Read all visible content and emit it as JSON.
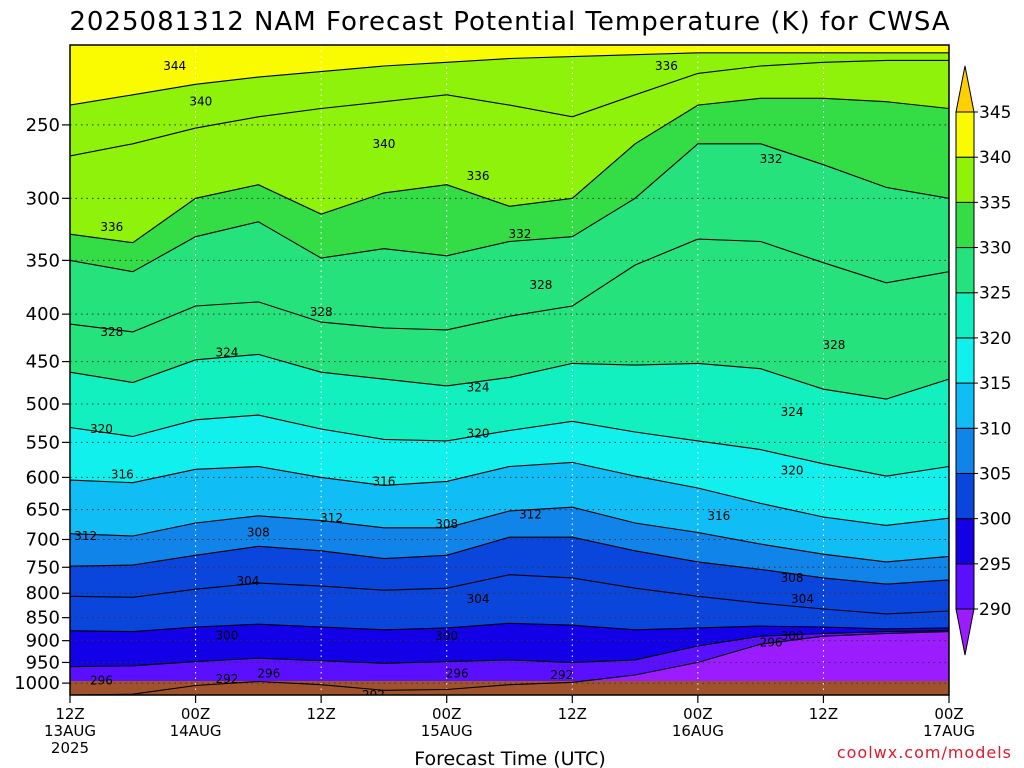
{
  "chart_data": {
    "type": "heatmap",
    "title": "2025081312 NAM Forecast Potential Temperature (K) for CWSA",
    "xlabel": "Forecast Time (UTC)",
    "ylabel": "",
    "credit": "coolwx.com/models",
    "x_ticks": [
      {
        "label": "12Z",
        "label2": "13AUG",
        "label3": "2025",
        "hour": 0
      },
      {
        "label": "00Z",
        "label2": "14AUG",
        "label3": "",
        "hour": 12
      },
      {
        "label": "12Z",
        "label2": "",
        "label3": "",
        "hour": 24
      },
      {
        "label": "00Z",
        "label2": "15AUG",
        "label3": "",
        "hour": 36
      },
      {
        "label": "12Z",
        "label2": "",
        "label3": "",
        "hour": 48
      },
      {
        "label": "00Z",
        "label2": "16AUG",
        "label3": "",
        "hour": 60
      },
      {
        "label": "12Z",
        "label2": "",
        "label3": "",
        "hour": 72
      },
      {
        "label": "00Z",
        "label2": "17AUG",
        "label3": "",
        "hour": 84
      }
    ],
    "xlim": [
      0,
      84
    ],
    "y_ticks": [
      250,
      300,
      350,
      400,
      450,
      500,
      550,
      600,
      650,
      700,
      750,
      800,
      850,
      900,
      950,
      1000
    ],
    "ylim": [
      1030,
      205
    ],
    "y_scale": "log",
    "colorbar": {
      "levels": [
        290,
        295,
        300,
        305,
        310,
        315,
        320,
        325,
        330,
        335,
        340,
        345
      ],
      "colors": [
        "#9a1cff",
        "#5a10ff",
        "#1400e6",
        "#0a46dc",
        "#1084e8",
        "#10bdf4",
        "#12f0ee",
        "#12f0c0",
        "#26e27c",
        "#34dc46",
        "#8ef20a",
        "#fafa00",
        "#ffd000"
      ]
    },
    "series": [
      {
        "theta": 344,
        "p": [
          238,
          232,
          226,
          222,
          219,
          216,
          214,
          212,
          211,
          210,
          209,
          209,
          209,
          209,
          209
        ]
      },
      {
        "theta": 340,
        "p": [
          270,
          262,
          252,
          245,
          240,
          236,
          232,
          238,
          245,
          232,
          220,
          216,
          214,
          213,
          213
        ]
      },
      {
        "theta": 336,
        "p": [
          328,
          335,
          300,
          290,
          312,
          296,
          290,
          306,
          300,
          262,
          238,
          234,
          234,
          236,
          240
        ]
      },
      {
        "theta": 332,
        "p": [
          350,
          360,
          330,
          318,
          348,
          340,
          346,
          334,
          330,
          300,
          262,
          262,
          276,
          292,
          300
        ]
      },
      {
        "theta": 328,
        "p": [
          410,
          418,
          392,
          388,
          408,
          414,
          416,
          402,
          392,
          354,
          332,
          334,
          352,
          370,
          360
        ]
      },
      {
        "theta": 324,
        "p": [
          462,
          474,
          448,
          442,
          462,
          470,
          478,
          468,
          452,
          454,
          452,
          458,
          482,
          494,
          470
        ]
      },
      {
        "theta": 320,
        "p": [
          530,
          542,
          520,
          514,
          532,
          546,
          548,
          534,
          522,
          536,
          548,
          560,
          580,
          598,
          584
        ]
      },
      {
        "theta": 316,
        "p": [
          604,
          608,
          588,
          584,
          600,
          612,
          606,
          584,
          578,
          598,
          616,
          640,
          662,
          676,
          664
        ]
      },
      {
        "theta": 312,
        "p": [
          690,
          694,
          672,
          660,
          668,
          680,
          680,
          652,
          646,
          672,
          688,
          708,
          726,
          740,
          730
        ]
      },
      {
        "theta": 308,
        "p": [
          748,
          746,
          728,
          712,
          720,
          734,
          728,
          696,
          696,
          720,
          740,
          754,
          770,
          782,
          774
        ]
      },
      {
        "theta": 304,
        "p": [
          806,
          808,
          792,
          780,
          786,
          794,
          790,
          764,
          770,
          790,
          806,
          820,
          832,
          842,
          836
        ]
      },
      {
        "theta": 300,
        "p": [
          878,
          880,
          870,
          864,
          870,
          876,
          872,
          862,
          866,
          876,
          872,
          868,
          870,
          874,
          872
        ]
      },
      {
        "theta": 296,
        "p": [
          960,
          958,
          948,
          940,
          946,
          952,
          948,
          944,
          950,
          944,
          912,
          890,
          884,
          880,
          878
        ]
      },
      {
        "theta": 292,
        "p": [
          1030,
          1028,
          1006,
          996,
          1004,
          1018,
          1016,
          1004,
          998,
          980,
          950,
          908,
          890,
          884,
          880
        ]
      }
    ],
    "contour_labels": [
      {
        "text": "344",
        "hour": 10,
        "p": 216
      },
      {
        "text": "340",
        "hour": 12.5,
        "p": 236
      },
      {
        "text": "340",
        "hour": 30,
        "p": 262
      },
      {
        "text": "336",
        "hour": 4,
        "p": 322
      },
      {
        "text": "336",
        "hour": 39,
        "p": 284
      },
      {
        "text": "336",
        "hour": 57,
        "p": 216
      },
      {
        "text": "332",
        "hour": 43,
        "p": 328
      },
      {
        "text": "332",
        "hour": 67,
        "p": 272
      },
      {
        "text": "328",
        "hour": 4,
        "p": 418
      },
      {
        "text": "328",
        "hour": 24,
        "p": 398
      },
      {
        "text": "328",
        "hour": 45,
        "p": 372
      },
      {
        "text": "328",
        "hour": 73,
        "p": 432
      },
      {
        "text": "324",
        "hour": 15,
        "p": 440
      },
      {
        "text": "324",
        "hour": 39,
        "p": 480
      },
      {
        "text": "324",
        "hour": 69,
        "p": 510
      },
      {
        "text": "320",
        "hour": 3,
        "p": 532
      },
      {
        "text": "320",
        "hour": 39,
        "p": 538
      },
      {
        "text": "320",
        "hour": 69,
        "p": 590
      },
      {
        "text": "316",
        "hour": 5,
        "p": 596
      },
      {
        "text": "316",
        "hour": 30,
        "p": 606
      },
      {
        "text": "316",
        "hour": 62,
        "p": 660
      },
      {
        "text": "312",
        "hour": 1.5,
        "p": 694
      },
      {
        "text": "312",
        "hour": 25,
        "p": 664
      },
      {
        "text": "312",
        "hour": 44,
        "p": 658
      },
      {
        "text": "308",
        "hour": 18,
        "p": 688
      },
      {
        "text": "308",
        "hour": 36,
        "p": 674
      },
      {
        "text": "308",
        "hour": 69,
        "p": 770
      },
      {
        "text": "304",
        "hour": 17,
        "p": 776
      },
      {
        "text": "304",
        "hour": 39,
        "p": 812
      },
      {
        "text": "304",
        "hour": 70,
        "p": 812
      },
      {
        "text": "300",
        "hour": 15,
        "p": 888
      },
      {
        "text": "300",
        "hour": 36,
        "p": 890
      },
      {
        "text": "300",
        "hour": 69,
        "p": 890
      },
      {
        "text": "296",
        "hour": 3,
        "p": 994
      },
      {
        "text": "296",
        "hour": 19,
        "p": 976
      },
      {
        "text": "296",
        "hour": 37,
        "p": 976
      },
      {
        "text": "296",
        "hour": 67,
        "p": 904
      },
      {
        "text": "292",
        "hour": 15,
        "p": 990
      },
      {
        "text": "292",
        "hour": 29,
        "p": 1030
      },
      {
        "text": "292",
        "hour": 47,
        "p": 980
      }
    ],
    "grid": true
  }
}
